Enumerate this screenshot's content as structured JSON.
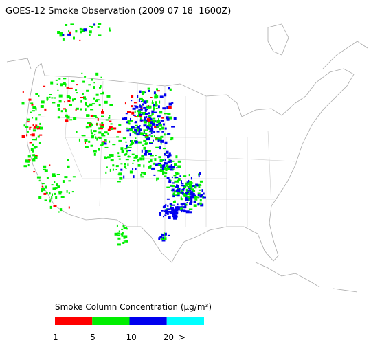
{
  "title": "GOES-12 Smoke Observation (2009 07 18  1600Z)",
  "legend": {
    "label": "Smoke Column Concentration (μg/m³)",
    "colors": [
      "#ff0000",
      "#00ee00",
      "#0000ee",
      "#00ffff"
    ],
    "ticks": [
      1,
      5,
      10,
      20
    ],
    "open_end": ">"
  }
}
